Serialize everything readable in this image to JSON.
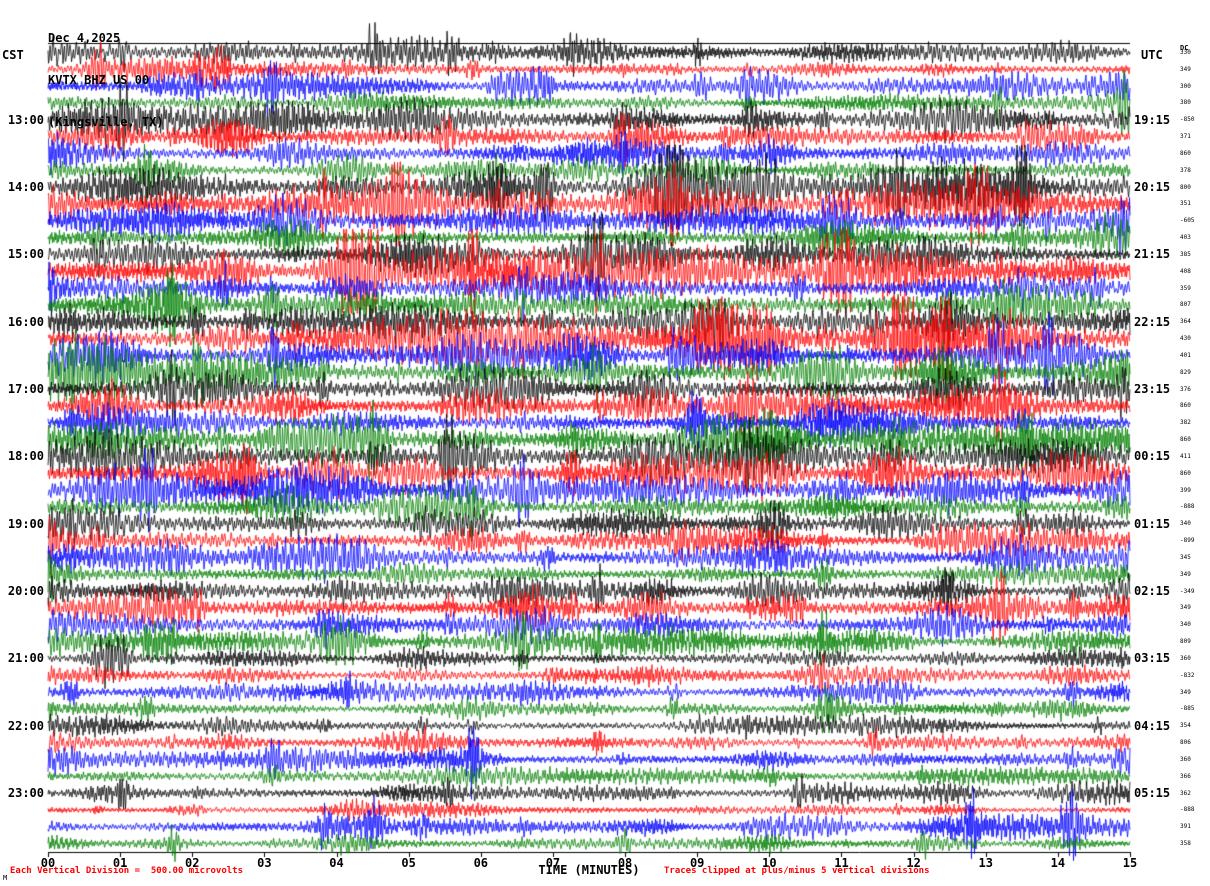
{
  "header": {
    "date": "Dec 4,2025",
    "station": "KVTX BHZ US 00",
    "location": "(Kingsville, TX)"
  },
  "axes": {
    "left_tz": "CST",
    "right_tz": "UTC",
    "dc_label": "DC",
    "xlabel": "TIME (MINUTES)"
  },
  "footer": {
    "left": "Each Vertical Division =  500.00 microvolts",
    "right": "Traces clipped at plus/minus 5 vertical divisions",
    "corner": "M"
  },
  "chart_data": {
    "type": "line",
    "title": "KVTX BHZ US 00 (Kingsville, TX) helicorder seismogram",
    "row_minutes": 15,
    "rows": 48,
    "start_time_left": "12:00",
    "colors_cycle": [
      "#000000",
      "#ff0000",
      "#0000ff",
      "#008000"
    ],
    "left_times": [
      "13:00",
      "14:00",
      "15:00",
      "16:00",
      "17:00",
      "18:00",
      "19:00",
      "20:00",
      "21:00",
      "22:00",
      "23:00"
    ],
    "right_times": [
      "19:15",
      "20:15",
      "21:15",
      "22:15",
      "23:15",
      "00:15",
      "01:15",
      "02:15",
      "03:15",
      "04:15",
      "05:15"
    ],
    "x_ticks": [
      "00",
      "01",
      "02",
      "03",
      "04",
      "05",
      "06",
      "07",
      "08",
      "09",
      "10",
      "11",
      "12",
      "13",
      "14",
      "15"
    ],
    "x_range_minutes": [
      0,
      15
    ],
    "microvolts_per_division": 500.0,
    "clip_divisions": 5,
    "dc_values": [
      330,
      349,
      300,
      380,
      -850,
      371,
      860,
      378,
      800,
      351,
      -605,
      403,
      385,
      408,
      359,
      807,
      364,
      430,
      401,
      829,
      376,
      860,
      382,
      860,
      411,
      860,
      399,
      -888,
      340,
      -899,
      345,
      349,
      -349,
      349,
      340,
      809,
      360,
      -832,
      349,
      -885,
      354,
      806,
      360,
      366,
      362,
      -888,
      391,
      358
    ],
    "amplitude_profile_note": "high microseism noise 14:00-19:00 CST, calmer after 21:00"
  }
}
